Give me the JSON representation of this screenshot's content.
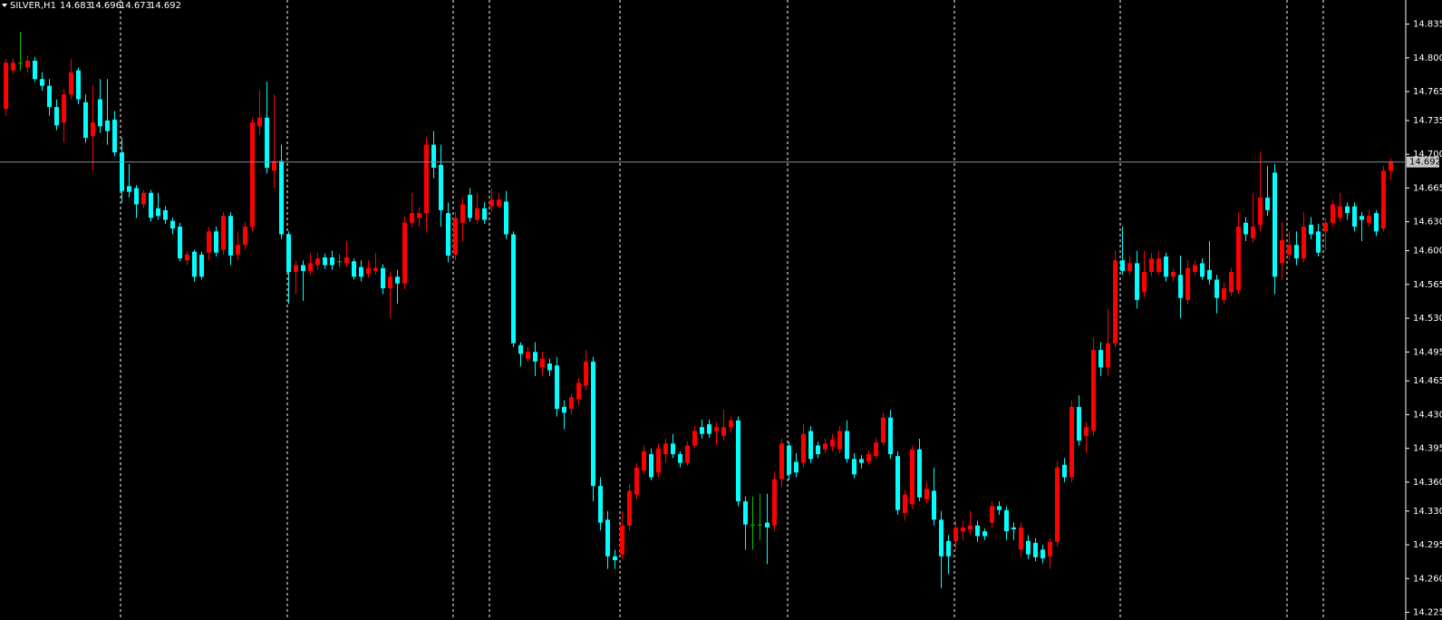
{
  "chart_data": {
    "type": "candlestick",
    "symbol": "SILVER,H1",
    "open": [
      14.747,
      14.787,
      14.795,
      14.79,
      14.797,
      14.778,
      14.771,
      14.749,
      14.733,
      14.762,
      14.787,
      14.754,
      14.719,
      14.757,
      14.735,
      14.736,
      14.702,
      14.667,
      14.665,
      14.648,
      14.66,
      14.644,
      14.642,
      14.631,
      14.625,
      14.59,
      14.599,
      14.596,
      14.598,
      14.62,
      14.601,
      14.636,
      14.596,
      14.606,
      14.625,
      14.729,
      14.738,
      14.683,
      14.693,
      14.617,
      14.578,
      14.585,
      14.579,
      14.585,
      14.593,
      14.593,
      14.589,
      14.587,
      14.589,
      14.583,
      14.576,
      14.579,
      14.582,
      14.561,
      14.573,
      14.566,
      14.629,
      14.634,
      14.639,
      14.71,
      14.689,
      14.639,
      14.596,
      14.629,
      14.658,
      14.632,
      14.644,
      14.646,
      14.646,
      14.651,
      14.617,
      14.502,
      14.488,
      14.495,
      14.479,
      14.483,
      14.481,
      14.438,
      14.436,
      14.446,
      14.46,
      14.485,
      14.356,
      14.321,
      14.283,
      14.285,
      14.315,
      14.347,
      14.372,
      14.389,
      14.37,
      14.389,
      14.4,
      14.389,
      14.38,
      14.398,
      14.417,
      14.42,
      14.413,
      14.408,
      14.417,
      14.424,
      14.34,
      14.316,
      14.316,
      14.318,
      14.315,
      14.363,
      14.398,
      14.381,
      14.38,
      14.413,
      14.398,
      14.394,
      14.397,
      14.394,
      14.413,
      14.384,
      14.384,
      14.381,
      14.387,
      14.401,
      14.427,
      14.387,
      14.328,
      14.337,
      14.394,
      14.342,
      14.351,
      14.321,
      14.299,
      14.299,
      14.309,
      14.311,
      14.315,
      14.309,
      14.318,
      14.335,
      14.331,
      14.313,
      14.29,
      14.299,
      14.297,
      14.29,
      14.283,
      14.298,
      14.378,
      14.365,
      14.438,
      14.408,
      14.413,
      14.497,
      14.479,
      14.504,
      14.59,
      14.579,
      14.587,
      14.557,
      14.578,
      14.578,
      14.594,
      14.573,
      14.575,
      14.549,
      14.578,
      14.587,
      14.58,
      14.57,
      14.549,
      14.557,
      14.559,
      14.629,
      14.613,
      14.627,
      14.655,
      14.681,
      14.587,
      14.596,
      14.606,
      14.592,
      14.627,
      14.62,
      14.62,
      14.629,
      14.634,
      14.646,
      14.646,
      14.636,
      14.629,
      14.639,
      14.623,
      14.683
    ],
    "high": [
      14.799,
      14.8,
      14.827,
      14.802,
      14.801,
      14.785,
      14.778,
      14.757,
      14.768,
      14.799,
      14.79,
      14.762,
      14.772,
      14.778,
      14.778,
      14.745,
      14.717,
      14.69,
      14.668,
      14.663,
      14.663,
      14.66,
      14.646,
      14.634,
      14.629,
      14.599,
      14.601,
      14.599,
      14.625,
      14.625,
      14.64,
      14.64,
      14.62,
      14.63,
      14.738,
      14.766,
      14.775,
      14.762,
      14.71,
      14.62,
      14.59,
      14.59,
      14.597,
      14.598,
      14.597,
      14.6,
      14.596,
      14.61,
      14.592,
      14.59,
      14.59,
      14.598,
      14.586,
      14.578,
      14.58,
      14.636,
      14.66,
      14.645,
      14.718,
      14.724,
      14.71,
      14.65,
      14.64,
      14.655,
      14.665,
      14.66,
      14.65,
      14.665,
      14.66,
      14.662,
      14.62,
      14.505,
      14.5,
      14.505,
      14.495,
      14.488,
      14.49,
      14.445,
      14.452,
      14.468,
      14.497,
      14.49,
      14.365,
      14.33,
      14.29,
      14.33,
      14.358,
      14.38,
      14.398,
      14.395,
      14.4,
      14.405,
      14.41,
      14.392,
      14.402,
      14.418,
      14.425,
      14.425,
      14.422,
      14.435,
      14.428,
      14.428,
      14.345,
      14.345,
      14.348,
      14.348,
      14.37,
      14.405,
      14.402,
      14.39,
      14.42,
      14.418,
      14.402,
      14.405,
      14.41,
      14.418,
      14.424,
      14.39,
      14.388,
      14.393,
      14.406,
      14.432,
      14.435,
      14.392,
      14.352,
      14.398,
      14.405,
      14.36,
      14.375,
      14.33,
      14.305,
      14.32,
      14.32,
      14.33,
      14.32,
      14.312,
      14.34,
      14.34,
      14.335,
      14.318,
      14.318,
      14.305,
      14.302,
      14.295,
      14.302,
      14.382,
      14.385,
      14.445,
      14.45,
      14.422,
      14.51,
      14.505,
      14.54,
      14.6,
      14.625,
      14.595,
      14.6,
      14.6,
      14.598,
      14.6,
      14.598,
      14.582,
      14.595,
      14.59,
      14.59,
      14.592,
      14.61,
      14.575,
      14.567,
      14.582,
      14.64,
      14.635,
      14.66,
      14.702,
      14.688,
      14.69,
      14.63,
      14.62,
      14.62,
      14.64,
      14.635,
      14.628,
      14.634,
      14.652,
      14.66,
      14.65,
      14.65,
      14.64,
      14.642,
      14.642,
      14.688,
      14.696
    ],
    "low": [
      14.74,
      14.783,
      14.787,
      14.785,
      14.775,
      14.766,
      14.74,
      14.725,
      14.712,
      14.757,
      14.752,
      14.712,
      14.683,
      14.722,
      14.71,
      14.698,
      14.65,
      14.655,
      14.634,
      14.644,
      14.63,
      14.632,
      14.628,
      14.617,
      14.589,
      14.585,
      14.568,
      14.57,
      14.59,
      14.594,
      14.596,
      14.585,
      14.59,
      14.601,
      14.62,
      14.72,
      14.68,
      14.665,
      14.612,
      14.545,
      14.555,
      14.548,
      14.575,
      14.58,
      14.581,
      14.58,
      14.583,
      14.583,
      14.57,
      14.568,
      14.572,
      14.575,
      14.555,
      14.53,
      14.545,
      14.56,
      14.624,
      14.625,
      14.62,
      14.675,
      14.625,
      14.588,
      14.59,
      14.61,
      14.63,
      14.628,
      14.628,
      14.64,
      14.644,
      14.612,
      14.5,
      14.48,
      14.485,
      14.47,
      14.47,
      14.47,
      14.428,
      14.415,
      14.43,
      14.44,
      14.455,
      14.34,
      14.31,
      14.27,
      14.27,
      14.28,
      14.31,
      14.342,
      14.368,
      14.362,
      14.365,
      14.38,
      14.385,
      14.375,
      14.377,
      14.395,
      14.405,
      14.406,
      14.398,
      14.403,
      14.412,
      14.335,
      14.29,
      14.29,
      14.3,
      14.275,
      14.31,
      14.355,
      14.362,
      14.365,
      14.375,
      14.38,
      14.385,
      14.39,
      14.392,
      14.39,
      14.38,
      14.364,
      14.374,
      14.378,
      14.384,
      14.398,
      14.384,
      14.326,
      14.32,
      14.332,
      14.34,
      14.338,
      14.315,
      14.25,
      14.265,
      14.29,
      14.3,
      14.305,
      14.298,
      14.3,
      14.312,
      14.326,
      14.3,
      14.3,
      14.282,
      14.28,
      14.278,
      14.276,
      14.27,
      14.293,
      14.36,
      14.36,
      14.398,
      14.39,
      14.408,
      14.47,
      14.47,
      14.5,
      14.575,
      14.575,
      14.54,
      14.552,
      14.574,
      14.575,
      14.568,
      14.568,
      14.53,
      14.545,
      14.574,
      14.57,
      14.565,
      14.535,
      14.545,
      14.553,
      14.555,
      14.61,
      14.608,
      14.62,
      14.636,
      14.555,
      14.57,
      14.59,
      14.585,
      14.588,
      14.612,
      14.594,
      14.6,
      14.625,
      14.63,
      14.632,
      14.62,
      14.61,
      14.625,
      14.615,
      14.62,
      14.673
    ],
    "close": [
      14.795,
      14.795,
      14.795,
      14.797,
      14.778,
      14.771,
      14.749,
      14.73,
      14.762,
      14.785,
      14.757,
      14.717,
      14.733,
      14.729,
      14.724,
      14.702,
      14.662,
      14.661,
      14.648,
      14.66,
      14.634,
      14.636,
      14.632,
      14.623,
      14.592,
      14.596,
      14.573,
      14.573,
      14.62,
      14.598,
      14.636,
      14.595,
      14.606,
      14.625,
      14.733,
      14.738,
      14.686,
      14.693,
      14.617,
      14.578,
      14.585,
      14.579,
      14.587,
      14.592,
      14.585,
      14.585,
      14.589,
      14.593,
      14.573,
      14.573,
      14.582,
      14.582,
      14.561,
      14.573,
      14.566,
      14.629,
      14.639,
      14.639,
      14.71,
      14.686,
      14.642,
      14.595,
      14.634,
      14.648,
      14.634,
      14.644,
      14.632,
      14.653,
      14.653,
      14.617,
      14.504,
      14.493,
      14.495,
      14.485,
      14.488,
      14.476,
      14.436,
      14.432,
      14.448,
      14.463,
      14.485,
      14.356,
      14.318,
      14.283,
      14.279,
      14.315,
      14.351,
      14.375,
      14.392,
      14.365,
      14.395,
      14.4,
      14.389,
      14.38,
      14.398,
      14.413,
      14.41,
      14.41,
      14.417,
      14.417,
      14.424,
      14.34,
      14.316,
      14.316,
      14.316,
      14.313,
      14.363,
      14.4,
      14.368,
      14.37,
      14.41,
      14.384,
      14.389,
      14.4,
      14.404,
      14.413,
      14.384,
      14.368,
      14.38,
      14.389,
      14.401,
      14.427,
      14.389,
      14.331,
      14.347,
      14.394,
      14.344,
      14.353,
      14.321,
      14.283,
      14.283,
      14.313,
      14.313,
      14.315,
      14.304,
      14.304,
      14.335,
      14.331,
      14.309,
      14.311,
      14.313,
      14.285,
      14.282,
      14.281,
      14.298,
      14.375,
      14.365,
      14.438,
      14.403,
      14.417,
      14.497,
      14.479,
      14.504,
      14.59,
      14.579,
      14.587,
      14.549,
      14.578,
      14.592,
      14.592,
      14.573,
      14.578,
      14.551,
      14.582,
      14.585,
      14.573,
      14.57,
      14.551,
      14.561,
      14.578,
      14.625,
      14.617,
      14.625,
      14.655,
      14.642,
      14.573,
      14.611,
      14.606,
      14.592,
      14.625,
      14.617,
      14.598,
      14.629,
      14.648,
      14.646,
      14.639,
      14.625,
      14.632,
      14.636,
      14.62,
      14.683,
      14.692
    ],
    "up_color": "#ff0000",
    "down_color": "#00ffff",
    "doji_color": "#00c000",
    "price_line_color": "#8090a0",
    "ylim": [
      14.217,
      14.86
    ],
    "yticks": [
      14.835,
      {
        "value": 14.8,
        "label": "14.800"
      },
      14.765,
      14.735,
      {
        "value": 14.7,
        "label": "14.700"
      },
      14.665,
      {
        "value": 14.63,
        "label": "14.630"
      },
      {
        "value": 14.6,
        "label": "14.600"
      },
      14.565,
      {
        "value": 14.53,
        "label": "14.530"
      },
      14.495,
      14.465,
      {
        "value": 14.43,
        "label": "14.430"
      },
      14.395,
      {
        "value": 14.36,
        "label": "14.360"
      },
      {
        "value": 14.33,
        "label": "14.330"
      },
      14.295,
      {
        "value": 14.26,
        "label": "14.260"
      },
      14.225
    ]
  }
}
